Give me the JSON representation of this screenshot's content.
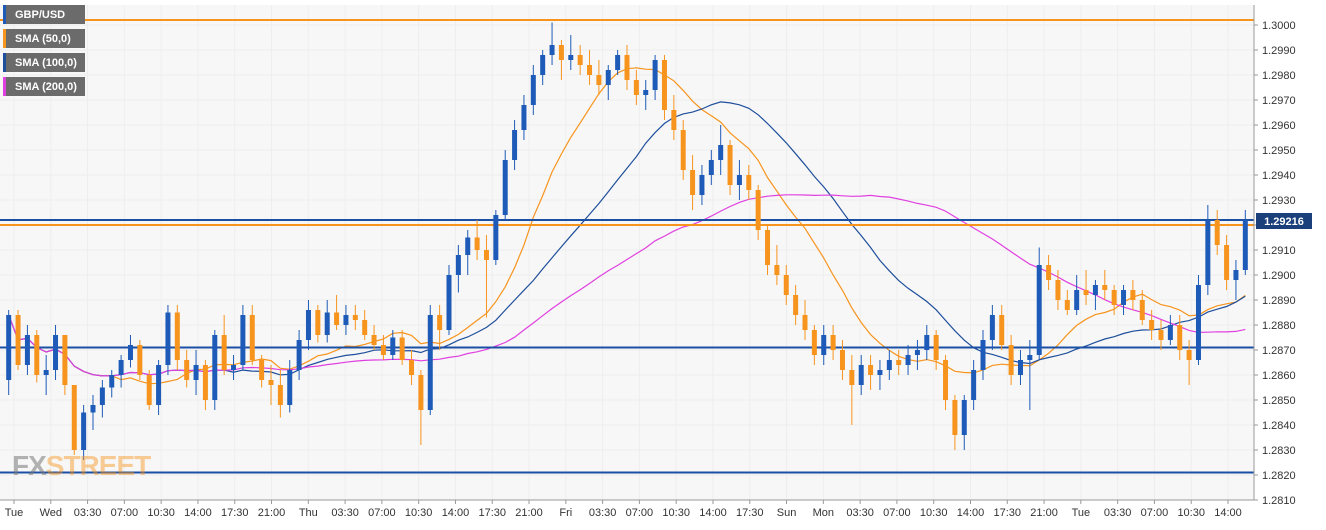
{
  "symbol": "GBP/USD",
  "watermark": {
    "part1": "FX",
    "part2": "STREET"
  },
  "colors": {
    "up": "#1e5bb8",
    "down": "#f7941d",
    "sma50": "#f7941d",
    "sma100": "#1e4f9c",
    "sma200": "#e040e0",
    "resistance": "#f7941d",
    "support": "#1a4fa3",
    "price_label_bg": "#1a3f7a",
    "grid": "#eeeeee"
  },
  "legend": [
    {
      "label": "GBP/USD",
      "color": "#1e5bb8"
    },
    {
      "label": "SMA (50,0)",
      "color": "#f7941d"
    },
    {
      "label": "SMA (100,0)",
      "color": "#1e4f9c"
    },
    {
      "label": "SMA (200,0)",
      "color": "#e040e0"
    }
  ],
  "chart_data": {
    "type": "candlestick",
    "title": "GBP/USD",
    "ylim": [
      1.281,
      1.3008
    ],
    "y_ticks": [
      "1.3000",
      "1.2990",
      "1.2980",
      "1.2970",
      "1.2960",
      "1.2950",
      "1.2940",
      "1.2930",
      "1.2920",
      "1.2910",
      "1.2900",
      "1.2890",
      "1.2880",
      "1.2870",
      "1.2860",
      "1.2850",
      "1.2840",
      "1.2830",
      "1.2820",
      "1.2810"
    ],
    "x_ticks": [
      "Tue",
      "Wed",
      "03:30",
      "07:00",
      "10:30",
      "14:00",
      "17:30",
      "21:00",
      "Thu",
      "03:30",
      "07:00",
      "10:30",
      "14:00",
      "17:30",
      "21:00",
      "Fri",
      "03:30",
      "07:00",
      "10:30",
      "14:00",
      "17:30",
      "Sun",
      "Mon",
      "03:30",
      "07:00",
      "10:30",
      "14:00",
      "17:30",
      "21:00",
      "Tue",
      "03:30",
      "07:00",
      "10:30",
      "14:00"
    ],
    "grid": true,
    "last_price": "1.29216",
    "horizontal_levels": [
      {
        "value": 1.3002,
        "kind": "resistance"
      },
      {
        "value": 1.292,
        "kind": "resistance"
      },
      {
        "value": 1.2922,
        "kind": "support"
      },
      {
        "value": 1.2871,
        "kind": "support"
      },
      {
        "value": 1.2821,
        "kind": "support"
      }
    ],
    "series": [
      {
        "name": "GBP/USD",
        "ohlc": [
          [
            1.2858,
            1.2886,
            1.2852,
            1.2884
          ],
          [
            1.2884,
            1.2886,
            1.2862,
            1.2864
          ],
          [
            1.2864,
            1.288,
            1.286,
            1.2876
          ],
          [
            1.2876,
            1.2878,
            1.2857,
            1.286
          ],
          [
            1.286,
            1.2868,
            1.2852,
            1.2862
          ],
          [
            1.2862,
            1.288,
            1.2858,
            1.2876
          ],
          [
            1.2876,
            1.2876,
            1.2852,
            1.2856
          ],
          [
            1.2856,
            1.2856,
            1.2828,
            1.283
          ],
          [
            1.283,
            1.2848,
            1.2826,
            1.2845
          ],
          [
            1.2845,
            1.2852,
            1.2838,
            1.2848
          ],
          [
            1.2848,
            1.2858,
            1.2843,
            1.2855
          ],
          [
            1.2855,
            1.2862,
            1.2851,
            1.286
          ],
          [
            1.286,
            1.2868,
            1.2855,
            1.2866
          ],
          [
            1.2866,
            1.2876,
            1.2863,
            1.2872
          ],
          [
            1.2872,
            1.2874,
            1.2858,
            1.286
          ],
          [
            1.286,
            1.2862,
            1.2846,
            1.2848
          ],
          [
            1.2848,
            1.2866,
            1.2844,
            1.2864
          ],
          [
            1.2864,
            1.2888,
            1.286,
            1.2885
          ],
          [
            1.2885,
            1.2888,
            1.2862,
            1.2866
          ],
          [
            1.2866,
            1.287,
            1.2855,
            1.2858
          ],
          [
            1.2858,
            1.287,
            1.2852,
            1.2864
          ],
          [
            1.2864,
            1.2866,
            1.2846,
            1.285
          ],
          [
            1.285,
            1.2878,
            1.2846,
            1.2876
          ],
          [
            1.2876,
            1.2884,
            1.286,
            1.2862
          ],
          [
            1.2862,
            1.2868,
            1.2858,
            1.2864
          ],
          [
            1.2864,
            1.2888,
            1.2862,
            1.2884
          ],
          [
            1.2884,
            1.2888,
            1.2864,
            1.2866
          ],
          [
            1.2866,
            1.2868,
            1.2855,
            1.2858
          ],
          [
            1.2858,
            1.2864,
            1.2848,
            1.2856
          ],
          [
            1.2856,
            1.2862,
            1.2843,
            1.2848
          ],
          [
            1.2848,
            1.2866,
            1.2845,
            1.2862
          ],
          [
            1.2862,
            1.2878,
            1.2858,
            1.2874
          ],
          [
            1.2874,
            1.289,
            1.287,
            1.2886
          ],
          [
            1.2886,
            1.2888,
            1.2873,
            1.2876
          ],
          [
            1.2876,
            1.289,
            1.2873,
            1.2885
          ],
          [
            1.2885,
            1.2892,
            1.2878,
            1.288
          ],
          [
            1.288,
            1.2888,
            1.2876,
            1.2884
          ],
          [
            1.2884,
            1.2888,
            1.2878,
            1.2882
          ],
          [
            1.2882,
            1.2886,
            1.2874,
            1.2876
          ],
          [
            1.2876,
            1.288,
            1.287,
            1.2872
          ],
          [
            1.2872,
            1.2876,
            1.2866,
            1.2868
          ],
          [
            1.2868,
            1.2878,
            1.2866,
            1.2875
          ],
          [
            1.2875,
            1.2878,
            1.2864,
            1.2866
          ],
          [
            1.2866,
            1.287,
            1.2856,
            1.286
          ],
          [
            1.286,
            1.2862,
            1.2832,
            1.2846
          ],
          [
            1.2846,
            1.2888,
            1.2844,
            1.2884
          ],
          [
            1.2884,
            1.2888,
            1.287,
            1.2878
          ],
          [
            1.2878,
            1.2904,
            1.2876,
            1.29
          ],
          [
            1.29,
            1.2912,
            1.2893,
            1.2908
          ],
          [
            1.2908,
            1.2918,
            1.29,
            1.2915
          ],
          [
            1.2915,
            1.2922,
            1.2906,
            1.291
          ],
          [
            1.291,
            1.2916,
            1.2883,
            1.2906
          ],
          [
            1.2906,
            1.2926,
            1.2904,
            1.2924
          ],
          [
            1.2924,
            1.295,
            1.2922,
            1.2946
          ],
          [
            1.2946,
            1.2962,
            1.2942,
            1.2958
          ],
          [
            1.2958,
            1.2972,
            1.2954,
            1.2968
          ],
          [
            1.2968,
            1.2984,
            1.2964,
            1.298
          ],
          [
            1.298,
            1.299,
            1.2976,
            1.2988
          ],
          [
            1.2988,
            1.3001,
            1.2984,
            1.2992
          ],
          [
            1.2992,
            1.2994,
            1.2978,
            1.2986
          ],
          [
            1.2986,
            1.2996,
            1.2982,
            1.2988
          ],
          [
            1.2988,
            1.2992,
            1.298,
            1.2984
          ],
          [
            1.2984,
            1.299,
            1.2976,
            1.298
          ],
          [
            1.298,
            1.2986,
            1.2972,
            1.2976
          ],
          [
            1.2976,
            1.2984,
            1.297,
            1.2982
          ],
          [
            1.2982,
            1.299,
            1.298,
            1.2988
          ],
          [
            1.2988,
            1.2992,
            1.2974,
            1.2978
          ],
          [
            1.2978,
            1.2982,
            1.2968,
            1.2972
          ],
          [
            1.2972,
            1.2978,
            1.2966,
            1.2974
          ],
          [
            1.2974,
            1.2988,
            1.297,
            1.2986
          ],
          [
            1.2986,
            1.2988,
            1.2962,
            1.2966
          ],
          [
            1.2966,
            1.2972,
            1.2954,
            1.2958
          ],
          [
            1.2958,
            1.2962,
            1.2938,
            1.2942
          ],
          [
            1.2942,
            1.2948,
            1.2926,
            1.2932
          ],
          [
            1.2932,
            1.2944,
            1.2928,
            1.294
          ],
          [
            1.294,
            1.295,
            1.2936,
            1.2946
          ],
          [
            1.2946,
            1.296,
            1.294,
            1.2952
          ],
          [
            1.2952,
            1.2954,
            1.2932,
            1.2936
          ],
          [
            1.2936,
            1.2946,
            1.293,
            1.294
          ],
          [
            1.294,
            1.2944,
            1.293,
            1.2934
          ],
          [
            1.2934,
            1.2936,
            1.2914,
            1.2918
          ],
          [
            1.2918,
            1.292,
            1.29,
            1.2904
          ],
          [
            1.2904,
            1.2912,
            1.2896,
            1.29
          ],
          [
            1.29,
            1.2904,
            1.2888,
            1.2892
          ],
          [
            1.2892,
            1.2896,
            1.288,
            1.2884
          ],
          [
            1.2884,
            1.289,
            1.2874,
            1.2878
          ],
          [
            1.2878,
            1.288,
            1.2864,
            1.2868
          ],
          [
            1.2868,
            1.288,
            1.2864,
            1.2876
          ],
          [
            1.2876,
            1.288,
            1.2866,
            1.287
          ],
          [
            1.287,
            1.2874,
            1.2858,
            1.2862
          ],
          [
            1.2862,
            1.2868,
            1.284,
            1.2856
          ],
          [
            1.2856,
            1.2868,
            1.2852,
            1.2864
          ],
          [
            1.2864,
            1.2868,
            1.2854,
            1.286
          ],
          [
            1.286,
            1.2866,
            1.2854,
            1.2862
          ],
          [
            1.2862,
            1.287,
            1.2858,
            1.2866
          ],
          [
            1.2866,
            1.287,
            1.286,
            1.2864
          ],
          [
            1.2864,
            1.2872,
            1.286,
            1.2868
          ],
          [
            1.2868,
            1.2874,
            1.2862,
            1.287
          ],
          [
            1.287,
            1.288,
            1.2866,
            1.2876
          ],
          [
            1.2876,
            1.2878,
            1.2862,
            1.2866
          ],
          [
            1.2866,
            1.2868,
            1.2846,
            1.285
          ],
          [
            1.285,
            1.2852,
            1.283,
            1.2836
          ],
          [
            1.2836,
            1.2852,
            1.283,
            1.285
          ],
          [
            1.285,
            1.2866,
            1.2846,
            1.2862
          ],
          [
            1.2862,
            1.2878,
            1.2858,
            1.2874
          ],
          [
            1.2874,
            1.2888,
            1.287,
            1.2884
          ],
          [
            1.2884,
            1.2888,
            1.287,
            1.2872
          ],
          [
            1.2872,
            1.2876,
            1.2856,
            1.286
          ],
          [
            1.286,
            1.287,
            1.2856,
            1.2866
          ],
          [
            1.2866,
            1.2874,
            1.2846,
            1.2868
          ],
          [
            1.2868,
            1.2911,
            1.2866,
            1.2904
          ],
          [
            1.2904,
            1.2908,
            1.2894,
            1.2898
          ],
          [
            1.2898,
            1.2902,
            1.2886,
            1.289
          ],
          [
            1.289,
            1.2894,
            1.2884,
            1.2886
          ],
          [
            1.2886,
            1.29,
            1.2884,
            1.2894
          ],
          [
            1.2894,
            1.2902,
            1.2888,
            1.2892
          ],
          [
            1.2892,
            1.2898,
            1.2886,
            1.2896
          ],
          [
            1.2896,
            1.2902,
            1.289,
            1.2894
          ],
          [
            1.2894,
            1.2896,
            1.2884,
            1.2888
          ],
          [
            1.2888,
            1.2896,
            1.2884,
            1.2894
          ],
          [
            1.2894,
            1.2898,
            1.2886,
            1.289
          ],
          [
            1.289,
            1.2894,
            1.288,
            1.2882
          ],
          [
            1.2882,
            1.2886,
            1.2874,
            1.2878
          ],
          [
            1.2878,
            1.2882,
            1.287,
            1.2874
          ],
          [
            1.2874,
            1.2884,
            1.2872,
            1.288
          ],
          [
            1.288,
            1.2884,
            1.2866,
            1.287
          ],
          [
            1.287,
            1.2874,
            1.2856,
            1.2866
          ],
          [
            1.2866,
            1.29,
            1.2864,
            1.2896
          ],
          [
            1.2896,
            1.2928,
            1.2892,
            1.2922
          ],
          [
            1.2922,
            1.2926,
            1.2908,
            1.2912
          ],
          [
            1.2912,
            1.2916,
            1.2894,
            1.2898
          ],
          [
            1.2898,
            1.2906,
            1.289,
            1.2902
          ],
          [
            1.2902,
            1.2926,
            1.29,
            1.2922
          ]
        ]
      },
      {
        "name": "SMA (50,0)",
        "values": []
      },
      {
        "name": "SMA (100,0)",
        "values": []
      },
      {
        "name": "SMA (200,0)",
        "values": []
      }
    ]
  }
}
